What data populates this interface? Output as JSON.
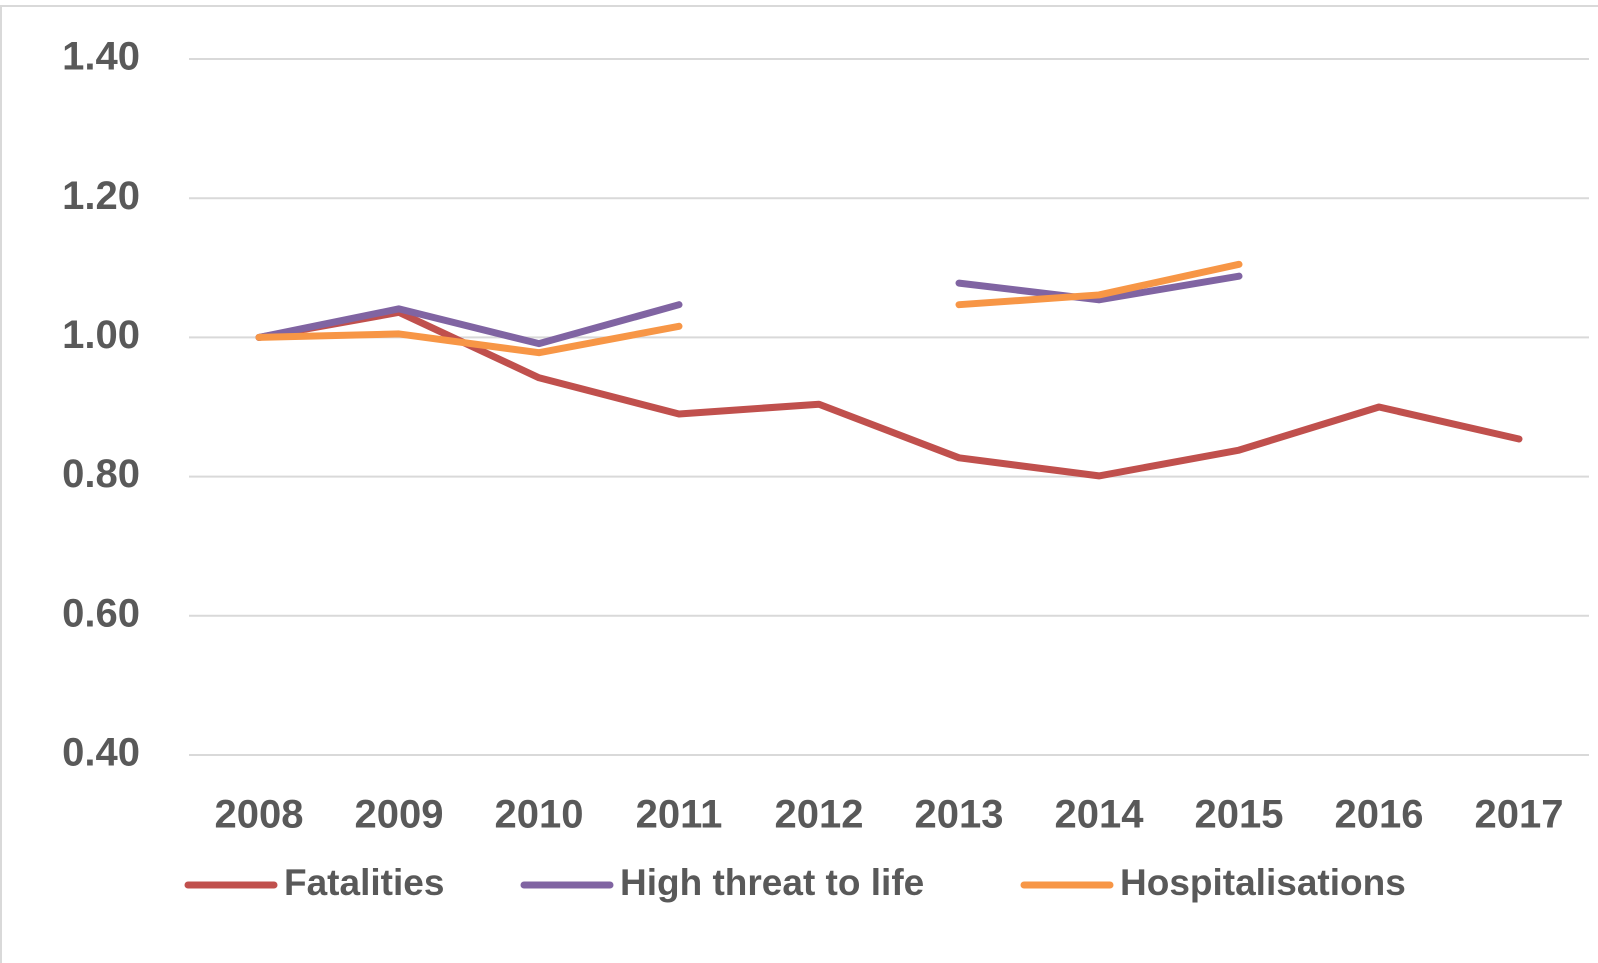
{
  "chart_data": {
    "type": "line",
    "categories": [
      "2008",
      "2009",
      "2010",
      "2011",
      "2012",
      "2013",
      "2014",
      "2015",
      "2016",
      "2017"
    ],
    "series": [
      {
        "name": "Fatalities",
        "color": "#c0504d",
        "values": [
          1.0,
          1.036,
          0.942,
          0.89,
          0.904,
          0.827,
          0.801,
          0.838,
          0.9,
          0.854
        ]
      },
      {
        "name": "High threat to life",
        "color": "#8064a2",
        "values": [
          1.0,
          1.041,
          0.991,
          1.047,
          null,
          1.078,
          1.054,
          1.088,
          null,
          null
        ]
      },
      {
        "name": "Hospitalisations",
        "color": "#f79646",
        "values": [
          1.0,
          1.005,
          0.978,
          1.016,
          null,
          1.047,
          1.061,
          1.105,
          null,
          null
        ]
      }
    ],
    "ylim": [
      0.4,
      1.4
    ],
    "yticks": [
      {
        "value": 0.4,
        "label": "0.40"
      },
      {
        "value": 0.6,
        "label": "0.60"
      },
      {
        "value": 0.8,
        "label": "0.80"
      },
      {
        "value": 1.0,
        "label": "1.00"
      },
      {
        "value": 1.2,
        "label": "1.20"
      },
      {
        "value": 1.4,
        "label": "1.40"
      }
    ],
    "grid": true,
    "legend": "bottom"
  }
}
